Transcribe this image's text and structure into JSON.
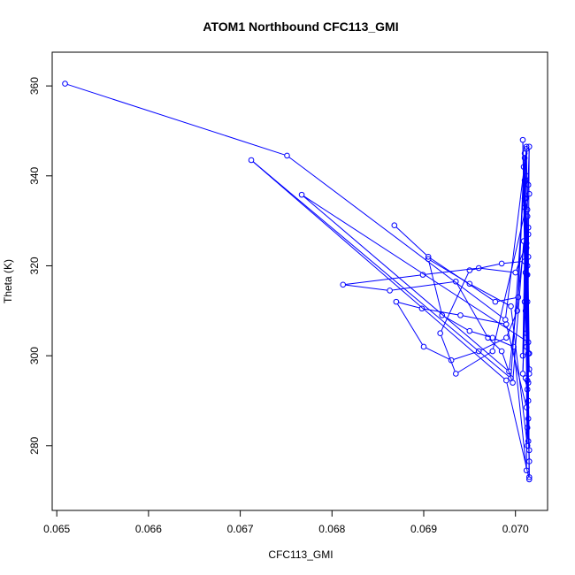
{
  "chart_data": {
    "type": "line",
    "title": "ATOM1 Northbound CFC113_GMI",
    "xlabel": "CFC113_GMI",
    "ylabel": "Theta (K)",
    "xlim": [
      0.06495,
      0.07035
    ],
    "ylim": [
      265.6,
      367.5
    ],
    "x_ticks": [
      "0.065",
      "0.066",
      "0.067",
      "0.068",
      "0.069",
      "0.070"
    ],
    "y_ticks": [
      "280",
      "300",
      "320",
      "340",
      "360"
    ],
    "series_color": "#0000ff",
    "marker": "open-circle",
    "connected": true,
    "series": [
      {
        "x": [
          0.06509,
          0.06751,
          0.06989,
          0.07012,
          0.07008,
          0.07015,
          0.07013,
          0.0701,
          0.07014,
          0.07009,
          0.07002,
          0.0699,
          0.0696,
          0.0693,
          0.069,
          0.0687,
          0.06898,
          0.0694,
          0.0699,
          0.07012,
          0.07014,
          0.07013,
          0.0701,
          0.07015,
          0.07011,
          0.07008,
          0.07014,
          0.07012,
          0.06998,
          0.06975,
          0.0695,
          0.0692,
          0.06905,
          0.0695,
          0.06995,
          0.07013,
          0.0701,
          0.07015,
          0.07012,
          0.07014,
          0.07009,
          0.06997,
          0.06985,
          0.0697,
          0.06935,
          0.06863,
          0.06812,
          0.06899,
          0.0696,
          0.07,
          0.07012,
          0.07014,
          0.07011,
          0.07015,
          0.07013,
          0.07013,
          0.0701,
          0.07015,
          0.07012,
          0.06995,
          0.06712,
          0.0699,
          0.07015,
          0.07013,
          0.07014,
          0.0701,
          0.07015,
          0.07012,
          0.07014,
          0.06767,
          0.06993,
          0.07013,
          0.07012,
          0.07014,
          0.07011,
          0.07013,
          0.07015
        ],
        "y": [
          360.5,
          344.5,
          308.0,
          346.0,
          300.0,
          346.5,
          294.5,
          333.0,
          281.0,
          342.0,
          310.0,
          304.0,
          301.0,
          299.0,
          302.0,
          312.0,
          310.5,
          309.0,
          307.0,
          288.5,
          322.0,
          292.5,
          339.0,
          276.5,
          318.5,
          296.0,
          327.0,
          274.5,
          302.0,
          304.0,
          305.5,
          309.0,
          321.5,
          316.0,
          311.0,
          280.0,
          335.0,
          279.0,
          318.0,
          300.5,
          325.5,
          294.0,
          301.0,
          304.0,
          316.5,
          314.5,
          315.8,
          318.0,
          319.5,
          318.5,
          325.0,
          286.0,
          335.0,
          273.0,
          312.0,
          332.5,
          312.0,
          300.5,
          346.5,
          295.0,
          343.5,
          294.5,
          272.5,
          320.0,
          294.0,
          344.0,
          296.0,
          324.0,
          303.0,
          335.8,
          296.5,
          331.0,
          305.0,
          328.5,
          310.0,
          318.0,
          297.0
        ]
      },
      {
        "x": [
          0.06868,
          0.06905,
          0.06978,
          0.07003,
          0.0701,
          0.07012,
          0.07014,
          0.07015,
          0.06975,
          0.06935,
          0.06918,
          0.0695,
          0.06985,
          0.0701,
          0.07008,
          0.07012,
          0.07013,
          0.07014,
          0.07011
        ],
        "y": [
          329.0,
          322.0,
          312.0,
          313.0,
          345.0,
          340.0,
          338.0,
          336.0,
          301.0,
          296.0,
          305.0,
          319.0,
          320.5,
          321.0,
          348.0,
          302.0,
          284.0,
          290.0,
          295.0
        ]
      }
    ]
  }
}
